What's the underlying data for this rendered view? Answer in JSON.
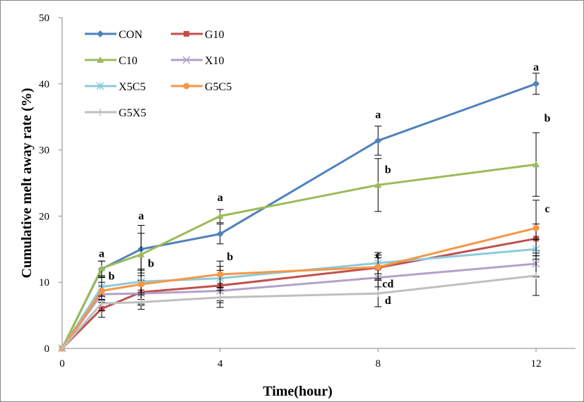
{
  "chart_data": {
    "type": "line",
    "xlabel": "Time(hour)",
    "ylabel": "Cumulative melt away rate (%)",
    "x": [
      0,
      1,
      2,
      4,
      8,
      12
    ],
    "xticks": [
      0,
      4,
      8,
      12
    ],
    "xlim": [
      0,
      13
    ],
    "ylim": [
      0,
      50
    ],
    "yticks": [
      0,
      10,
      20,
      30,
      40,
      50
    ],
    "grid": false,
    "legend_position": "top-left",
    "series": [
      {
        "name": "CON",
        "color": "#4F81BD",
        "marker": "diamond",
        "values": [
          0,
          12.0,
          15.0,
          17.3,
          31.4,
          40.0
        ],
        "errors": [
          0,
          1.2,
          3.6,
          1.5,
          2.2,
          1.6
        ]
      },
      {
        "name": "G10",
        "color": "#C0504D",
        "marker": "square",
        "values": [
          0,
          6.0,
          8.5,
          9.5,
          12.2,
          16.6
        ],
        "errors": [
          0,
          1.3,
          1.8,
          2.3,
          1.5,
          2.2
        ]
      },
      {
        "name": "C10",
        "color": "#9BBB59",
        "marker": "triangle",
        "values": [
          0,
          12.1,
          14.2,
          20.0,
          24.7,
          27.8
        ],
        "errors": [
          0,
          1.1,
          3.2,
          1.0,
          4.0,
          4.8
        ]
      },
      {
        "name": "X10",
        "color": "#B2A1C7",
        "marker": "x",
        "values": [
          0,
          8.2,
          8.3,
          8.7,
          10.7,
          12.8
        ],
        "errors": [
          0,
          1.2,
          1.8,
          1.8,
          1.4,
          2.0
        ]
      },
      {
        "name": "X5C5",
        "color": "#8BCBDB",
        "marker": "star",
        "values": [
          0,
          9.3,
          10.1,
          10.6,
          12.9,
          15.0
        ],
        "errors": [
          0,
          1.4,
          1.7,
          1.8,
          1.6,
          1.5
        ]
      },
      {
        "name": "G5C5",
        "color": "#F79646",
        "marker": "circle",
        "values": [
          0,
          8.7,
          9.7,
          11.2,
          12.3,
          18.2
        ],
        "errors": [
          0,
          1.3,
          2.3,
          2.0,
          1.8,
          4.2
        ]
      },
      {
        "name": "G5X5",
        "color": "#BFBFBF",
        "marker": "plus",
        "values": [
          0,
          6.8,
          7.0,
          7.7,
          8.3,
          11.0
        ],
        "errors": [
          0,
          1.1,
          1.1,
          1.5,
          2.0,
          3.0
        ]
      }
    ],
    "annotations": [
      {
        "text": "a",
        "x": 1,
        "y": 13.8
      },
      {
        "text": "b",
        "x": 1,
        "y": 10.4
      },
      {
        "text": "a",
        "x": 2,
        "y": 19.5
      },
      {
        "text": "b",
        "x": 2,
        "y": 12.3
      },
      {
        "text": "a",
        "x": 4,
        "y": 22.3
      },
      {
        "text": "b",
        "x": 4,
        "y": 13.3
      },
      {
        "text": "a",
        "x": 8,
        "y": 34.8
      },
      {
        "text": "b",
        "x": 8,
        "y": 26.5
      },
      {
        "text": "c",
        "x": 8,
        "y": 13.6
      },
      {
        "text": "cd",
        "x": 8,
        "y": 9.2
      },
      {
        "text": "d",
        "x": 8,
        "y": 6.7
      },
      {
        "text": "a",
        "x": 12,
        "y": 42.0
      },
      {
        "text": "b",
        "x": 12,
        "y": 34.3
      },
      {
        "text": "c",
        "x": 12,
        "y": 20.6
      }
    ]
  }
}
